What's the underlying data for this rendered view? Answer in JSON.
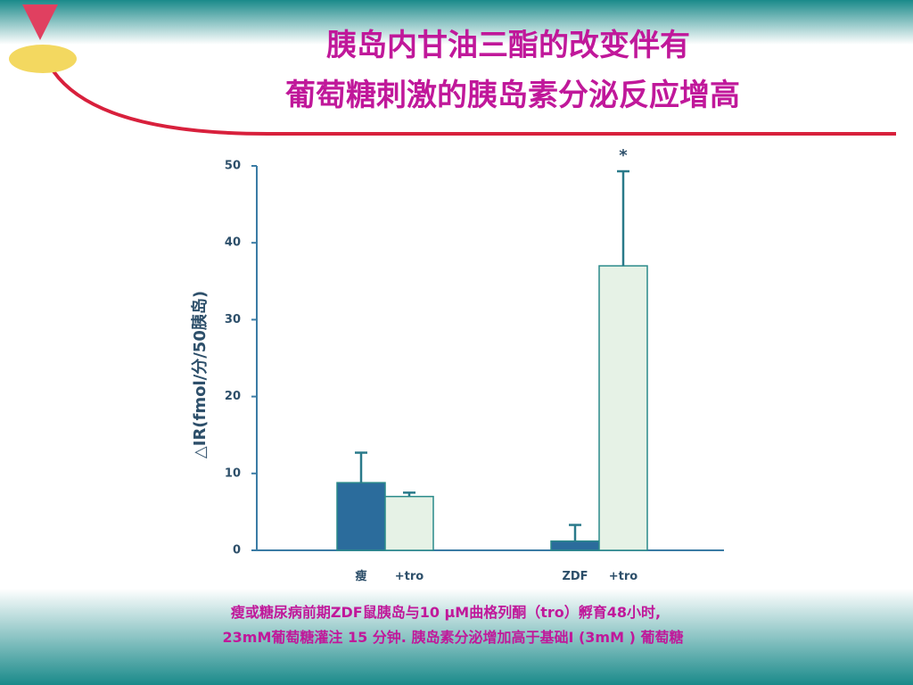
{
  "chart_data": {
    "type": "bar",
    "title_lines": [
      "胰岛内甘油三酯的改变伴有",
      "葡萄糖刺激的胰岛素分泌反应增高"
    ],
    "y_label": "△IR(fmol/分/50胰岛)",
    "categories": [
      "瘦",
      "+tro",
      "ZDF",
      "+tro"
    ],
    "values": [
      8.8,
      7.0,
      1.2,
      37.0
    ],
    "errors": [
      3.9,
      0.5,
      2.1,
      12.3
    ],
    "colors": [
      "#2b6c9c",
      "#e6f2e6",
      "#2b6c9c",
      "#e6f2e6"
    ],
    "annotation": "*",
    "ylim": [
      0,
      50
    ],
    "yticks": [
      0,
      10,
      20,
      30,
      40,
      50
    ],
    "caption_lines": [
      "瘦或糖尿病前期ZDF鼠胰岛与10 μM曲格列酮（tro）孵育48小时,",
      "23mM葡萄糖灌注 15 分钟. 胰岛素分泌增加高于基础I (3mM ) 葡萄糖"
    ]
  }
}
